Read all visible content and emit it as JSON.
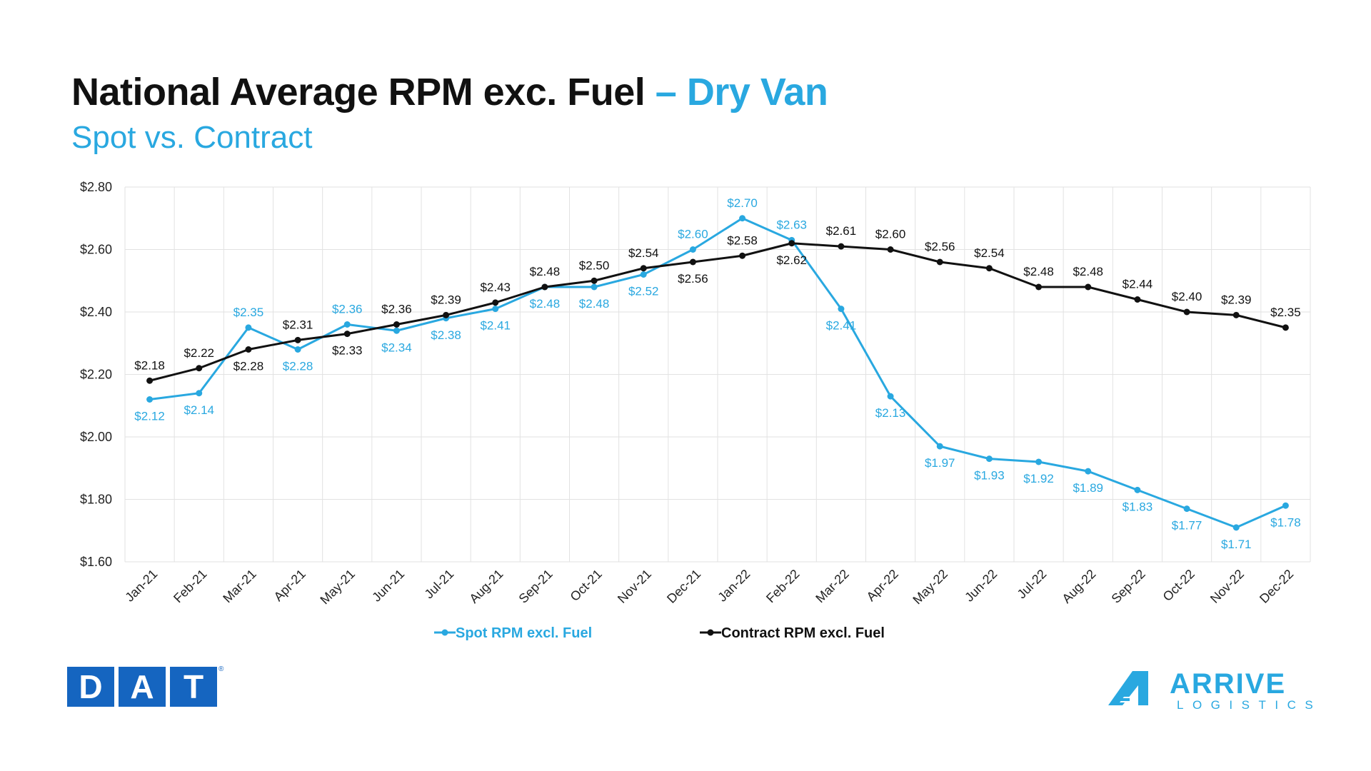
{
  "header": {
    "title_main": "National Average RPM exc. Fuel",
    "title_accent": "– Dry Van",
    "subtitle": "Spot vs. Contract"
  },
  "colors": {
    "spot": "#29a8e0",
    "contract": "#111111",
    "grid": "#e2e2e2"
  },
  "logos": {
    "dat_letters": [
      "D",
      "A",
      "T"
    ],
    "dat_reg": "®",
    "arrive_word": "ARRIVE",
    "arrive_sub": "LOGISTICS"
  },
  "chart_data": {
    "type": "line",
    "x": [
      "Jan-21",
      "Feb-21",
      "Mar-21",
      "Apr-21",
      "May-21",
      "Jun-21",
      "Jul-21",
      "Aug-21",
      "Sep-21",
      "Oct-21",
      "Nov-21",
      "Dec-21",
      "Jan-22",
      "Feb-22",
      "Mar-22",
      "Apr-22",
      "May-22",
      "Jun-22",
      "Jul-22",
      "Aug-22",
      "Sep-22",
      "Oct-22",
      "Nov-22",
      "Dec-22"
    ],
    "series": [
      {
        "name": "Spot RPM excl. Fuel",
        "color": "#29a8e0",
        "values": [
          2.12,
          2.14,
          2.35,
          2.28,
          2.36,
          2.34,
          2.38,
          2.41,
          2.48,
          2.48,
          2.52,
          2.6,
          2.7,
          2.63,
          2.41,
          2.13,
          1.97,
          1.93,
          1.92,
          1.89,
          1.83,
          1.77,
          1.71,
          1.78
        ],
        "data_labels": [
          "$2.12",
          "$2.14",
          "$2.35",
          "$2.28",
          "$2.36",
          "$2.34",
          "$2.38",
          "$2.41",
          "$2.48",
          "$2.48",
          "$2.52",
          "$2.60",
          "$2.70",
          "$2.63",
          "$2.41",
          "$2.13",
          "$1.97",
          "$1.93",
          "$1.92",
          "$1.89",
          "$1.83",
          "$1.77",
          "$1.71",
          "$1.78"
        ]
      },
      {
        "name": "Contract RPM excl. Fuel",
        "color": "#111111",
        "values": [
          2.18,
          2.22,
          2.28,
          2.31,
          2.33,
          2.36,
          2.39,
          2.43,
          2.48,
          2.5,
          2.54,
          2.56,
          2.58,
          2.62,
          2.61,
          2.6,
          2.56,
          2.54,
          2.48,
          2.48,
          2.44,
          2.4,
          2.39,
          2.35
        ],
        "data_labels": [
          "$2.18",
          "$2.22",
          "$2.28",
          "$2.31",
          "$2.33",
          "$2.36",
          "$2.39",
          "$2.43",
          "$2.48",
          "$2.50",
          "$2.54",
          "$2.56",
          "$2.58",
          "$2.62",
          "$2.61",
          "$2.60",
          "$2.56",
          "$2.54",
          "$2.48",
          "$2.48",
          "$2.44",
          "$2.40",
          "$2.39",
          "$2.35"
        ]
      }
    ],
    "ylim": [
      1.6,
      2.8
    ],
    "y_ticks": [
      1.6,
      1.8,
      2.0,
      2.2,
      2.4,
      2.6,
      2.8
    ],
    "y_tick_labels": [
      "$1.60",
      "$1.80",
      "$2.00",
      "$2.20",
      "$2.40",
      "$2.60",
      "$2.80"
    ],
    "grid": true,
    "legend_position": "bottom"
  }
}
